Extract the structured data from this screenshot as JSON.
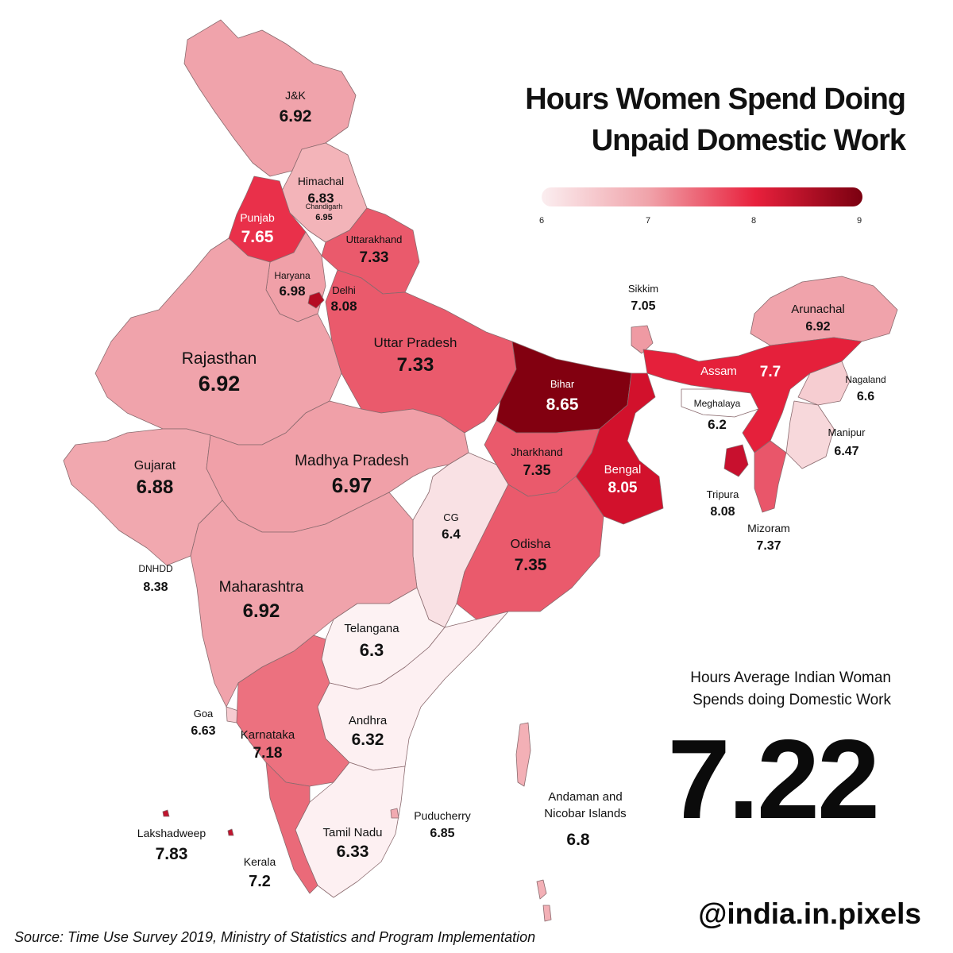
{
  "title": {
    "line1": "Hours Women Spend Doing",
    "line2": "Unpaid Domestic Work"
  },
  "legend": {
    "ticks": [
      "6",
      "7",
      "8",
      "9"
    ],
    "min": 6,
    "max": 9,
    "colors": [
      "#fbeef0",
      "#f0a3aa",
      "#e8203c",
      "#7a0010"
    ]
  },
  "average": {
    "label_line1": "Hours Average Indian Woman",
    "label_line2": "Spends doing Domestic Work",
    "value": "7.22"
  },
  "handle": "@india.in.pixels",
  "source": "Source: Time Use Survey 2019, Ministry of Statistics and Program Implementation",
  "regions": [
    {
      "name": "J&K",
      "value": "6.92",
      "color": "#f0a3ab"
    },
    {
      "name": "Himachal",
      "value": "6.83",
      "color": "#f3b4b9"
    },
    {
      "name": "Chandigarh",
      "value": "6.95",
      "color": "#f0a3ab"
    },
    {
      "name": "Punjab",
      "value": "7.65",
      "color": "#e9304a"
    },
    {
      "name": "Uttarakhand",
      "value": "7.33",
      "color": "#ea5a6c"
    },
    {
      "name": "Haryana",
      "value": "6.98",
      "color": "#f0a0a8"
    },
    {
      "name": "Delhi",
      "value": "8.08",
      "color": "#b50c22"
    },
    {
      "name": "Rajasthan",
      "value": "6.92",
      "color": "#f0a3ab"
    },
    {
      "name": "Uttar Pradesh",
      "value": "7.33",
      "color": "#ea5a6c"
    },
    {
      "name": "Bihar",
      "value": "8.65",
      "color": "#820010"
    },
    {
      "name": "Sikkim",
      "value": "7.05",
      "color": "#ef9aa3"
    },
    {
      "name": "Arunachal",
      "value": "6.92",
      "color": "#f0a3ab"
    },
    {
      "name": "Assam",
      "value": "7.7",
      "color": "#e5203b"
    },
    {
      "name": "Nagaland",
      "value": "6.6",
      "color": "#f6cdd1"
    },
    {
      "name": "Meghalaya",
      "value": "6.2",
      "color": "#ffffff"
    },
    {
      "name": "Manipur",
      "value": "6.47",
      "color": "#f7d8db"
    },
    {
      "name": "Tripura",
      "value": "8.08",
      "color": "#c8102e"
    },
    {
      "name": "Mizoram",
      "value": "7.37",
      "color": "#e9566a"
    },
    {
      "name": "Gujarat",
      "value": "6.88",
      "color": "#f1a8af"
    },
    {
      "name": "Madhya Pradesh",
      "value": "6.97",
      "color": "#f0a0a8"
    },
    {
      "name": "Jharkhand",
      "value": "7.35",
      "color": "#ea5a6c"
    },
    {
      "name": "Bengal",
      "value": "8.05",
      "color": "#d2112c"
    },
    {
      "name": "CG",
      "value": "6.4",
      "color": "#f9e1e4"
    },
    {
      "name": "Odisha",
      "value": "7.35",
      "color": "#ea5a6c"
    },
    {
      "name": "DNHDD",
      "value": "8.38",
      "color": "#9c0a1e"
    },
    {
      "name": "Maharashtra",
      "value": "6.92",
      "color": "#f0a3ab"
    },
    {
      "name": "Telangana",
      "value": "6.3",
      "color": "#fdf2f3"
    },
    {
      "name": "Goa",
      "value": "6.63",
      "color": "#f6cbd0"
    },
    {
      "name": "Karnataka",
      "value": "7.18",
      "color": "#ec717f"
    },
    {
      "name": "Andhra",
      "value": "6.32",
      "color": "#fdf0f2"
    },
    {
      "name": "Andaman and",
      "value": "6.8",
      "color": "#f3b0b6"
    },
    {
      "name": "Nicobar Islands",
      "value": "",
      "color": "#f3b0b6"
    },
    {
      "name": "Puducherry",
      "value": "6.85",
      "color": "#f1aab1"
    },
    {
      "name": "Lakshadweep",
      "value": "7.83",
      "color": "#c0142e"
    },
    {
      "name": "Tamil Nadu",
      "value": "6.33",
      "color": "#fdf0f2"
    },
    {
      "name": "Kerala",
      "value": "7.2",
      "color": "#ea6a79"
    }
  ]
}
